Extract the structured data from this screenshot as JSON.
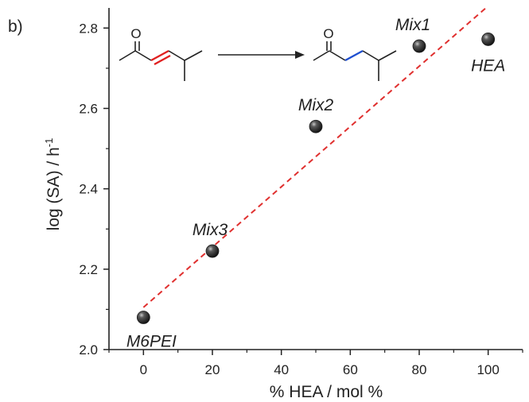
{
  "panel_label": "b)",
  "chart_data": {
    "type": "scatter",
    "xlabel": "% HEA / mol %",
    "ylabel_main": "log (SA) / h",
    "ylabel_sup": "-1",
    "xlim": [
      -10,
      110
    ],
    "ylim": [
      2.0,
      2.85
    ],
    "xticks": [
      0,
      20,
      40,
      60,
      80,
      100
    ],
    "xtick_labels": [
      "0",
      "20",
      "40",
      "60",
      "80",
      "100"
    ],
    "yticks": [
      2.0,
      2.2,
      2.4,
      2.6,
      2.8
    ],
    "ytick_labels": [
      "2.0",
      "2.2",
      "2.4",
      "2.6",
      "2.8"
    ],
    "points": [
      {
        "label": "M6PEI",
        "x": 0,
        "y": 2.08
      },
      {
        "label": "Mix3",
        "x": 20,
        "y": 2.245
      },
      {
        "label": "Mix2",
        "x": 50,
        "y": 2.555
      },
      {
        "label": "Mix1",
        "x": 80,
        "y": 2.755
      },
      {
        "label": "HEA",
        "x": 100,
        "y": 2.772
      }
    ],
    "fit_line": {
      "x": [
        0,
        100
      ],
      "y": [
        2.105,
        2.855
      ],
      "color": "#e0302f",
      "style": "dashed"
    },
    "grid": false,
    "marker_color": "#1f1f1f",
    "scheme": {
      "reactant_label": "O",
      "product_label": "O",
      "reactant_double_bond_color": "#e02020",
      "product_bond_color": "#1f4fd0"
    }
  }
}
